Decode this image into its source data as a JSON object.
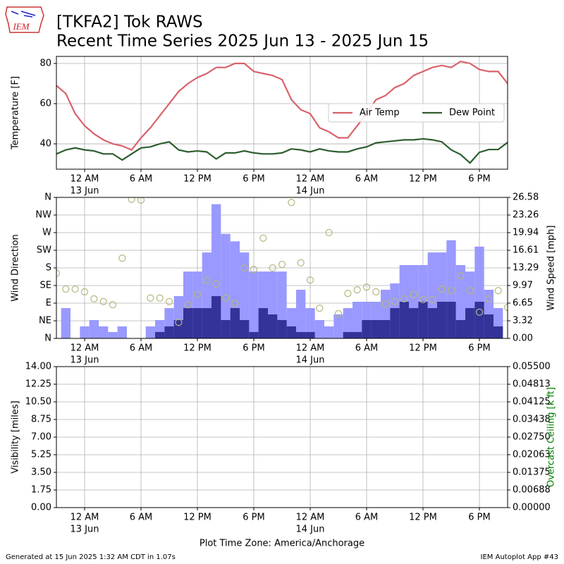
{
  "title": "[TKFA2] Tok RAWS",
  "subtitle": "Recent Time Series 2025 Jun 13 - 2025 Jun 15",
  "logo_text": "IEM",
  "footer": {
    "left": "Generated at 15 Jun 2025 1:32 AM CDT in 1.07s",
    "right": "IEM Autoplot App #43"
  },
  "chart_data": [
    {
      "type": "line",
      "ylabel": "Temperature [F]",
      "grid": true,
      "legend": "center right",
      "xlim": [
        "12 Jun 21:00",
        "14 Jun 21:00"
      ],
      "xticks": [
        {
          "value": "13 Jun 00:00",
          "label": "12 AM",
          "date_label": "13 Jun"
        },
        {
          "value": "13 Jun 06:00",
          "label": "6 AM"
        },
        {
          "value": "13 Jun 12:00",
          "label": "12 PM"
        },
        {
          "value": "13 Jun 18:00",
          "label": "6 PM"
        },
        {
          "value": "14 Jun 00:00",
          "label": "12 AM",
          "date_label": "14 Jun"
        },
        {
          "value": "14 Jun 06:00",
          "label": "6 AM"
        },
        {
          "value": "14 Jun 12:00",
          "label": "12 PM"
        },
        {
          "value": "14 Jun 18:00",
          "label": "6 PM"
        }
      ],
      "ylim": [
        27.4,
        83.5
      ],
      "yticks": [
        40,
        60,
        80
      ],
      "x": [
        "12 Jun 21:00",
        "12 Jun 22:00",
        "12 Jun 23:00",
        "13 Jun 00:00",
        "13 Jun 01:00",
        "13 Jun 02:00",
        "13 Jun 03:00",
        "13 Jun 04:00",
        "13 Jun 05:00",
        "13 Jun 06:00",
        "13 Jun 07:00",
        "13 Jun 08:00",
        "13 Jun 09:00",
        "13 Jun 10:00",
        "13 Jun 11:00",
        "13 Jun 12:00",
        "13 Jun 13:00",
        "13 Jun 14:00",
        "13 Jun 15:00",
        "13 Jun 16:00",
        "13 Jun 17:00",
        "13 Jun 18:00",
        "13 Jun 19:00",
        "13 Jun 20:00",
        "13 Jun 21:00",
        "13 Jun 22:00",
        "13 Jun 23:00",
        "14 Jun 00:00",
        "14 Jun 01:00",
        "14 Jun 02:00",
        "14 Jun 03:00",
        "14 Jun 04:00",
        "14 Jun 05:00",
        "14 Jun 06:00",
        "14 Jun 07:00",
        "14 Jun 08:00",
        "14 Jun 09:00",
        "14 Jun 10:00",
        "14 Jun 11:00",
        "14 Jun 12:00",
        "14 Jun 13:00",
        "14 Jun 14:00",
        "14 Jun 15:00",
        "14 Jun 16:00",
        "14 Jun 17:00",
        "14 Jun 18:00",
        "14 Jun 19:00",
        "14 Jun 20:00",
        "14 Jun 21:00"
      ],
      "series": [
        {
          "name": "Air Temp",
          "color": "#d9626b",
          "values": [
            69,
            65,
            55,
            49,
            45,
            42,
            40,
            39,
            37,
            43,
            48,
            54,
            60,
            66,
            70,
            73,
            75,
            78,
            78,
            80,
            80,
            76,
            75,
            74,
            72,
            62,
            57,
            55,
            48,
            46,
            43,
            43,
            49,
            55,
            62,
            64,
            68,
            70,
            74,
            76,
            78,
            79,
            78,
            81,
            80,
            77,
            76,
            76,
            70
          ]
        },
        {
          "name": "Dew Point",
          "color": "#2e5e2e",
          "values": [
            35,
            37,
            38,
            37,
            36.5,
            35,
            35,
            32,
            35,
            38,
            38.5,
            40,
            41,
            37,
            36,
            36.5,
            36,
            32.5,
            35.5,
            35.5,
            36.5,
            35.5,
            35,
            35,
            35.5,
            37.5,
            37,
            36,
            37.5,
            36.5,
            36,
            36,
            37.5,
            38.5,
            40.5,
            41,
            41.5,
            42,
            42,
            42.5,
            42,
            41,
            37,
            34.7,
            30.5,
            35.8,
            37.2,
            37.2,
            40.7
          ]
        }
      ]
    },
    {
      "type": "combo",
      "ylabel": "Wind Direction",
      "y2label": "Wind Speed [mph]",
      "grid": true,
      "xlim": [
        "12 Jun 21:00",
        "14 Jun 21:00"
      ],
      "xticks": [
        {
          "value": "13 Jun 00:00",
          "label": "12 AM",
          "date_label": "13 Jun"
        },
        {
          "value": "13 Jun 06:00",
          "label": "6 AM"
        },
        {
          "value": "13 Jun 12:00",
          "label": "12 PM"
        },
        {
          "value": "13 Jun 18:00",
          "label": "6 PM"
        },
        {
          "value": "14 Jun 00:00",
          "label": "12 AM",
          "date_label": "14 Jun"
        },
        {
          "value": "14 Jun 06:00",
          "label": "6 AM"
        },
        {
          "value": "14 Jun 12:00",
          "label": "12 PM"
        },
        {
          "value": "14 Jun 18:00",
          "label": "6 PM"
        }
      ],
      "ylim": [
        0,
        360
      ],
      "yticks": [
        {
          "value": 0,
          "label": "N"
        },
        {
          "value": 45,
          "label": "NE"
        },
        {
          "value": 90,
          "label": "E"
        },
        {
          "value": 135,
          "label": "SE"
        },
        {
          "value": 180,
          "label": "S"
        },
        {
          "value": 225,
          "label": "SW"
        },
        {
          "value": 270,
          "label": "W"
        },
        {
          "value": 315,
          "label": "NW"
        },
        {
          "value": 360,
          "label": "N"
        }
      ],
      "y2lim": [
        0,
        26.58
      ],
      "y2ticks": [
        {
          "value": 0,
          "label": "0.00"
        },
        3.32,
        6.65,
        9.97,
        13.29,
        16.61,
        19.94,
        23.26,
        26.58
      ],
      "x": [
        "12 Jun 21:00",
        "12 Jun 22:00",
        "12 Jun 23:00",
        "13 Jun 00:00",
        "13 Jun 01:00",
        "13 Jun 02:00",
        "13 Jun 03:00",
        "13 Jun 04:00",
        "13 Jun 05:00",
        "13 Jun 06:00",
        "13 Jun 07:00",
        "13 Jun 08:00",
        "13 Jun 09:00",
        "13 Jun 10:00",
        "13 Jun 11:00",
        "13 Jun 12:00",
        "13 Jun 13:00",
        "13 Jun 14:00",
        "13 Jun 15:00",
        "13 Jun 16:00",
        "13 Jun 17:00",
        "13 Jun 18:00",
        "13 Jun 19:00",
        "13 Jun 20:00",
        "13 Jun 21:00",
        "13 Jun 22:00",
        "13 Jun 23:00",
        "14 Jun 00:00",
        "14 Jun 01:00",
        "14 Jun 02:00",
        "14 Jun 03:00",
        "14 Jun 04:00",
        "14 Jun 05:00",
        "14 Jun 06:00",
        "14 Jun 07:00",
        "14 Jun 08:00",
        "14 Jun 09:00",
        "14 Jun 10:00",
        "14 Jun 11:00",
        "14 Jun 12:00",
        "14 Jun 13:00",
        "14 Jun 14:00",
        "14 Jun 15:00",
        "14 Jun 16:00",
        "14 Jun 17:00",
        "14 Jun 18:00",
        "14 Jun 19:00",
        "14 Jun 20:00",
        "14 Jun 21:00"
      ],
      "series": [
        {
          "type": "bar",
          "axis": "y2",
          "color": "#9999ff",
          "values": [
            0,
            5.71,
            0,
            2.26,
            3.46,
            2.26,
            1.2,
            2.26,
            0,
            0,
            2.26,
            3.46,
            5.71,
            7.97,
            12.6,
            12.6,
            16.2,
            25.3,
            19.7,
            18.3,
            16.2,
            12.6,
            12.6,
            12.6,
            12.6,
            5.71,
            9.17,
            5.71,
            3.46,
            2.26,
            4.52,
            5.71,
            6.91,
            6.91,
            6.91,
            9.17,
            10.37,
            13.82,
            13.82,
            13.82,
            16.2,
            16.2,
            18.5,
            13.82,
            12.6,
            17.3,
            9.17,
            5.71,
            0
          ]
        },
        {
          "type": "bar",
          "axis": "y2",
          "color": "#333399",
          "values": [
            0,
            0,
            0,
            0,
            0,
            0,
            0,
            0,
            0,
            0,
            0,
            1.2,
            2.26,
            3.46,
            5.71,
            5.71,
            5.71,
            7.97,
            3.46,
            5.71,
            3.46,
            1.2,
            5.71,
            4.52,
            3.46,
            2.26,
            1.2,
            1.2,
            0,
            0,
            0,
            1.2,
            1.2,
            3.46,
            3.46,
            3.46,
            5.71,
            6.91,
            5.71,
            6.91,
            5.71,
            6.91,
            6.91,
            3.46,
            5.71,
            6.91,
            4.52,
            2.26,
            0
          ]
        },
        {
          "type": "scatter",
          "axis": "y",
          "color": "#b5b77e",
          "values": [
            166,
            126,
            126,
            119,
            101,
            94,
            86,
            205,
            355,
            353,
            103,
            103,
            94,
            41,
            86,
            112,
            148,
            139,
            103,
            90,
            180,
            176,
            256,
            180,
            189,
            347,
            193,
            149,
            77,
            270,
            63,
            115,
            124,
            131,
            119,
            88,
            94,
            101,
            112,
            99,
            99,
            126,
            122,
            160,
            122,
            67,
            101,
            122,
            79
          ]
        }
      ]
    },
    {
      "type": "line",
      "ylabel": "Visibility [miles]",
      "y2label": "Overcast Ceiling [k ft]",
      "y2label_color": "#008000",
      "xlabel": "Plot Time Zone: America/Anchorage",
      "grid": true,
      "xlim": [
        "12 Jun 21:00",
        "14 Jun 21:00"
      ],
      "xticks": [
        {
          "value": "13 Jun 00:00",
          "label": "12 AM",
          "date_label": "13 Jun"
        },
        {
          "value": "13 Jun 06:00",
          "label": "6 AM"
        },
        {
          "value": "13 Jun 12:00",
          "label": "12 PM"
        },
        {
          "value": "13 Jun 18:00",
          "label": "6 PM"
        },
        {
          "value": "14 Jun 00:00",
          "label": "12 AM",
          "date_label": "14 Jun"
        },
        {
          "value": "14 Jun 06:00",
          "label": "6 AM"
        },
        {
          "value": "14 Jun 12:00",
          "label": "12 PM"
        },
        {
          "value": "14 Jun 18:00",
          "label": "6 PM"
        }
      ],
      "ylim": [
        0,
        14
      ],
      "yticks": [
        {
          "value": 0,
          "label": "0.00"
        },
        1.75,
        {
          "value": 3.5,
          "label": "3.50"
        },
        5.25,
        {
          "value": 7,
          "label": "7.00"
        },
        8.75,
        {
          "value": 10.5,
          "label": "10.50"
        },
        12.25,
        {
          "value": 14,
          "label": "14.00"
        }
      ],
      "y2lim": [
        0,
        0.055
      ],
      "y2ticks": [
        {
          "value": 0,
          "label": "0.00000"
        },
        {
          "value": 0.006875,
          "label": "0.00688"
        },
        0.01375,
        {
          "value": 0.020625,
          "label": "0.02063"
        },
        {
          "value": 0.0275,
          "label": "0.02750"
        },
        {
          "value": 0.034375,
          "label": "0.03438"
        },
        0.04125,
        {
          "value": 0.048125,
          "label": "0.04813"
        },
        {
          "value": 0.055,
          "label": "0.05500"
        }
      ],
      "series": []
    }
  ]
}
